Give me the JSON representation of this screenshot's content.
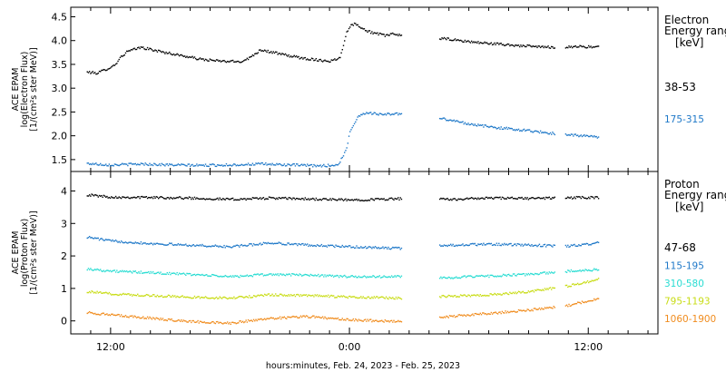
{
  "chart_data": [
    {
      "type": "scatter",
      "ylabel_lines": [
        "ACE EPAM",
        "log(Electron Flux)",
        "[1/(cm²s ster MeV)]"
      ],
      "ylim": [
        1.25,
        4.7
      ],
      "yticks": [
        1.5,
        2.0,
        2.5,
        3.0,
        3.5,
        4.0,
        4.5
      ],
      "ytick_labels": [
        "1.5",
        "2.0",
        "2.5",
        "3.0",
        "3.5",
        "4.0",
        "4.5"
      ],
      "legend_title": [
        "Electron",
        "Energy ranges",
        "[keV]"
      ],
      "series": [
        {
          "name": "38-53",
          "color": "#000000",
          "x": [
            -1.2,
            -0.7,
            -0.3,
            0.2,
            0.4,
            0.8,
            1.5,
            2.5,
            3.5,
            4.5,
            5.5,
            6.5,
            7.0,
            7.5,
            8.5,
            9.5,
            10.5,
            11.0,
            11.5,
            11.8,
            12.0,
            12.3,
            12.8,
            13.4,
            13.8,
            14.2,
            14.5,
            17.0,
            17.5,
            18.5,
            20.0,
            21.5,
            22.5,
            23.5,
            24.5
          ],
          "y": [
            3.35,
            3.33,
            3.4,
            3.5,
            3.63,
            3.78,
            3.87,
            3.78,
            3.7,
            3.62,
            3.58,
            3.57,
            3.66,
            3.82,
            3.73,
            3.65,
            3.6,
            3.58,
            3.65,
            4.15,
            4.32,
            4.37,
            4.22,
            4.15,
            4.12,
            4.15,
            4.13,
            4.04,
            4.01,
            3.97,
            3.92,
            3.88,
            3.87,
            3.89,
            3.87
          ]
        },
        {
          "name": "175-315",
          "color": "#1e78c8",
          "x": [
            -1.2,
            0.0,
            1.5,
            3.0,
            4.5,
            6.0,
            7.5,
            9.0,
            10.5,
            11.4,
            11.8,
            12.0,
            12.4,
            12.8,
            13.2,
            13.8,
            14.3,
            17.0,
            17.5,
            18.2,
            19.0,
            20.0,
            21.0,
            22.0,
            23.5,
            24.5
          ],
          "y": [
            1.43,
            1.4,
            1.42,
            1.4,
            1.39,
            1.4,
            1.42,
            1.4,
            1.38,
            1.4,
            1.7,
            2.1,
            2.42,
            2.5,
            2.48,
            2.46,
            2.48,
            2.35,
            2.3,
            2.25,
            2.2,
            2.16,
            2.12,
            2.07,
            2.02,
            1.98
          ]
        }
      ]
    },
    {
      "type": "scatter",
      "ylabel_lines": [
        "ACE EPAM",
        "log(Proton Flux)",
        "[1/(cm²s ster MeV)]"
      ],
      "ylim": [
        -0.4,
        4.6
      ],
      "yticks": [
        0,
        1,
        2,
        3,
        4
      ],
      "ytick_labels": [
        "0",
        "1",
        "2",
        "3",
        "4"
      ],
      "legend_title": [
        "Proton",
        "Energy ranges",
        "[keV]"
      ],
      "xlabel": "hours:minutes, Feb. 24, 2023 - Feb. 25, 2023",
      "xticks": [
        0,
        12,
        24
      ],
      "xtick_labels": [
        "12:00",
        "0:00",
        "12:00"
      ],
      "series": [
        {
          "name": "47-68",
          "color": "#000000",
          "x": [
            -1.2,
            0.0,
            2.0,
            4.0,
            6.0,
            8.0,
            10.0,
            12.0,
            14.5,
            17.0,
            19.0,
            21.0,
            23.0,
            24.5
          ],
          "y": [
            3.9,
            3.83,
            3.82,
            3.8,
            3.76,
            3.8,
            3.77,
            3.74,
            3.78,
            3.76,
            3.8,
            3.79,
            3.81,
            3.82
          ]
        },
        {
          "name": "115-195",
          "color": "#1e78c8",
          "x": [
            -1.2,
            0.0,
            2.0,
            4.0,
            6.0,
            8.0,
            10.0,
            12.0,
            14.5,
            17.0,
            19.0,
            21.0,
            23.0,
            24.5
          ],
          "y": [
            2.6,
            2.48,
            2.4,
            2.35,
            2.3,
            2.42,
            2.35,
            2.3,
            2.25,
            2.35,
            2.38,
            2.35,
            2.32,
            2.42
          ]
        },
        {
          "name": "310-580",
          "color": "#28dcd2",
          "x": [
            -1.2,
            0.0,
            2.0,
            4.0,
            6.0,
            8.0,
            10.0,
            12.0,
            14.5,
            17.0,
            19.0,
            21.0,
            23.0,
            24.5
          ],
          "y": [
            1.62,
            1.55,
            1.5,
            1.45,
            1.38,
            1.45,
            1.43,
            1.38,
            1.38,
            1.35,
            1.4,
            1.45,
            1.55,
            1.6
          ]
        },
        {
          "name": "795-1193",
          "color": "#c8dc14",
          "x": [
            -1.2,
            0.0,
            2.0,
            4.0,
            6.0,
            8.0,
            10.0,
            12.0,
            14.5,
            17.0,
            19.0,
            21.0,
            23.0,
            24.5
          ],
          "y": [
            0.92,
            0.85,
            0.8,
            0.75,
            0.72,
            0.82,
            0.8,
            0.75,
            0.72,
            0.78,
            0.82,
            0.92,
            1.1,
            1.3
          ]
        },
        {
          "name": "1060-1900",
          "color": "#f08c1e",
          "x": [
            -1.2,
            0.0,
            2.0,
            4.0,
            6.0,
            8.0,
            10.0,
            12.0,
            14.5,
            17.0,
            19.0,
            21.0,
            23.0,
            24.5
          ],
          "y": [
            0.28,
            0.2,
            0.1,
            0.0,
            -0.05,
            0.1,
            0.15,
            0.05,
            0.0,
            0.15,
            0.25,
            0.35,
            0.5,
            0.7
          ]
        }
      ]
    }
  ]
}
